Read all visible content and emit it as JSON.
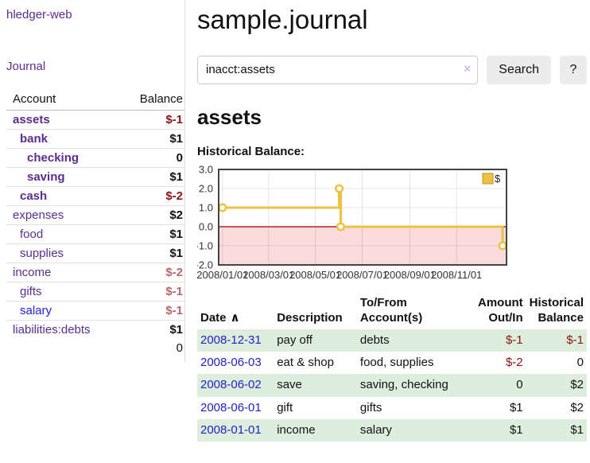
{
  "brand": "hledger-web",
  "header": {
    "title": "sample.journal"
  },
  "sidebar": {
    "journal_link": "Journal",
    "accounts_table": {
      "col_account": "Account",
      "col_balance": "Balance",
      "rows": [
        {
          "name": "assets",
          "balance": "$-1",
          "level": 1,
          "bold": true,
          "balance_class": "neg-strong"
        },
        {
          "name": "bank",
          "balance": "$1",
          "level": 2,
          "bold": true,
          "balance_class": "pos"
        },
        {
          "name": "checking",
          "balance": "0",
          "level": 3,
          "bold": true,
          "balance_class": "pos"
        },
        {
          "name": "saving",
          "balance": "$1",
          "level": 3,
          "bold": true,
          "balance_class": "pos"
        },
        {
          "name": "cash",
          "balance": "$-2",
          "level": 2,
          "bold": true,
          "balance_class": "neg-strong"
        },
        {
          "name": "expenses",
          "balance": "$2",
          "level": 1,
          "bold": false,
          "balance_class": "pos"
        },
        {
          "name": "food",
          "balance": "$1",
          "level": 2,
          "bold": false,
          "balance_class": "pos"
        },
        {
          "name": "supplies",
          "balance": "$1",
          "level": 2,
          "bold": false,
          "balance_class": "pos"
        },
        {
          "name": "income",
          "balance": "$-2",
          "level": 1,
          "bold": false,
          "balance_class": "neg-muted"
        },
        {
          "name": "gifts",
          "balance": "$-1",
          "level": 2,
          "bold": false,
          "balance_class": "neg-muted"
        },
        {
          "name": "salary",
          "balance": "$-1",
          "level": 2,
          "bold": false,
          "balance_class": "neg-muted",
          "link_class": "blue"
        },
        {
          "name": "liabilities:debts",
          "balance": "$1",
          "level": 1,
          "bold": false,
          "balance_class": "pos"
        }
      ],
      "total": "0"
    }
  },
  "search": {
    "value": "inacct:assets",
    "clear_icon": "×",
    "button": "Search",
    "help_button": "?"
  },
  "account_page": {
    "heading": "assets",
    "chart_label": "Historical Balance:"
  },
  "chart_data": {
    "type": "line",
    "title": "Historical Balance:",
    "step": true,
    "legend": {
      "label": "$",
      "position": "top-right"
    },
    "series": [
      {
        "name": "$",
        "color": "#edc240",
        "points": [
          {
            "date": "2008-01-01",
            "day": 0,
            "value": 1
          },
          {
            "date": "2008-06-01",
            "day": 152,
            "value": 2
          },
          {
            "date": "2008-06-03",
            "day": 154,
            "value": 0
          },
          {
            "date": "2008-12-31",
            "day": 365,
            "value": -1
          }
        ]
      }
    ],
    "x_ticks": [
      {
        "label": "2008/01/01",
        "day": 0
      },
      {
        "label": "2008/03/01",
        "day": 60
      },
      {
        "label": "2008/05/01",
        "day": 121
      },
      {
        "label": "2008/07/01",
        "day": 182
      },
      {
        "label": "2008/09/01",
        "day": 244
      },
      {
        "label": "2008/11/01",
        "day": 305
      }
    ],
    "y_ticks": [
      {
        "label": "3.0",
        "value": 3
      },
      {
        "label": "2.0",
        "value": 2
      },
      {
        "label": "1.0",
        "value": 1
      },
      {
        "label": "0.0",
        "value": 0
      },
      {
        "label": "-1.0",
        "value": -1
      },
      {
        "label": "-2.0",
        "value": -2
      }
    ],
    "ylim": [
      -2,
      3
    ],
    "xlim_days": [
      -5,
      370
    ],
    "grid": true,
    "negative_fill": "#fbdcdc",
    "zero_line_color": "#990000",
    "border_color": "#444444"
  },
  "register_table": {
    "sort_icon": "∧",
    "headers": [
      {
        "line1": "Date",
        "line2": ""
      },
      {
        "line1": "Description",
        "line2": ""
      },
      {
        "line1": "To/From",
        "line2": "Account(s)"
      },
      {
        "line1": "Amount",
        "line2": "Out/In"
      },
      {
        "line1": "Historical",
        "line2": "Balance"
      }
    ],
    "rows": [
      {
        "date": "2008-12-31",
        "description": "pay off",
        "accounts": "debts",
        "amount": "$-1",
        "amount_neg": true,
        "balance": "$-1",
        "balance_neg": true
      },
      {
        "date": "2008-06-03",
        "description": "eat & shop",
        "accounts": "food, supplies",
        "amount": "$-2",
        "amount_neg": true,
        "balance": "0",
        "balance_neg": false
      },
      {
        "date": "2008-06-02",
        "description": "save",
        "accounts": "saving, checking",
        "amount": "0",
        "amount_neg": false,
        "balance": "$2",
        "balance_neg": false
      },
      {
        "date": "2008-06-01",
        "description": "gift",
        "accounts": "gifts",
        "amount": "$1",
        "amount_neg": false,
        "balance": "$2",
        "balance_neg": false
      },
      {
        "date": "2008-01-01",
        "description": "income",
        "accounts": "salary",
        "amount": "$1",
        "amount_neg": false,
        "balance": "$1",
        "balance_neg": false
      }
    ]
  },
  "colors": {
    "link_purple": "#5c2d91",
    "link_blue": "#2222cc",
    "negative_red": "#8b1414",
    "negative_muted": "#bb6666",
    "row_green": "#ddeedd",
    "chart_gold": "#edc240",
    "chart_negative_fill": "#fbdcdc",
    "chart_zero_line": "#990000"
  }
}
